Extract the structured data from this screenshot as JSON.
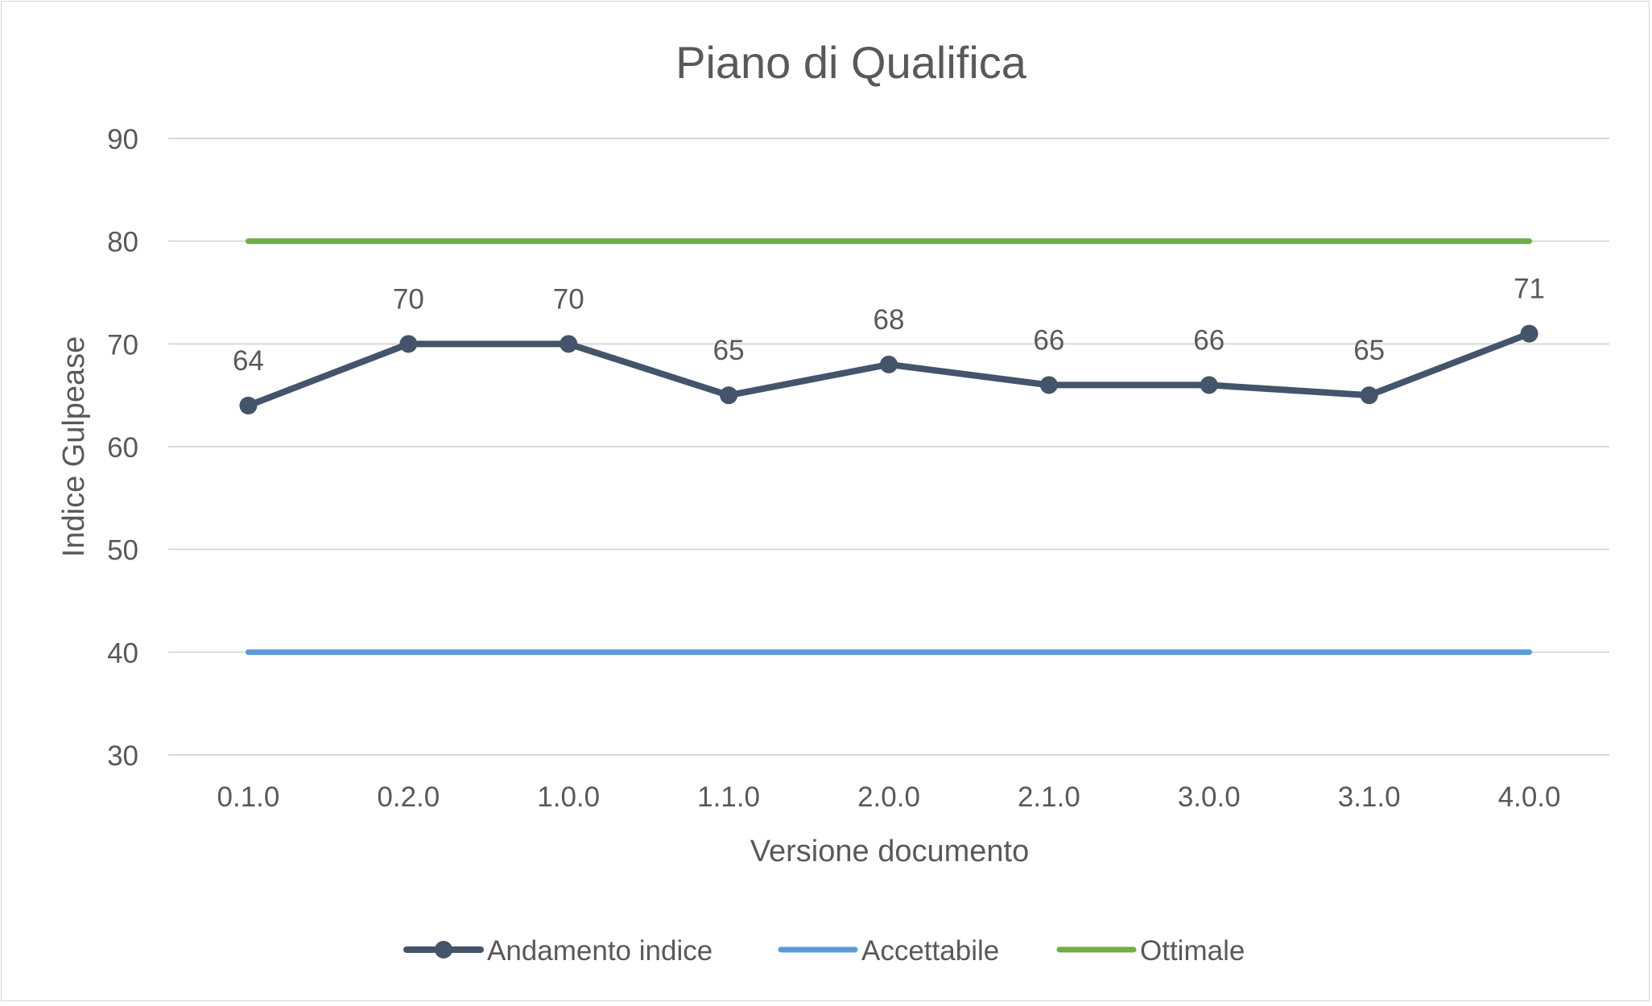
{
  "chart_data": {
    "type": "line",
    "title": "Piano di Qualifica",
    "xlabel": "Versione documento",
    "ylabel": "Indice Gulpease",
    "categories": [
      "0.1.0",
      "0.2.0",
      "1.0.0",
      "1.1.0",
      "2.0.0",
      "2.1.0",
      "3.0.0",
      "3.1.0",
      "4.0.0"
    ],
    "ylim": [
      30,
      90
    ],
    "yticks": [
      30,
      40,
      50,
      60,
      70,
      80,
      90
    ],
    "grid": true,
    "legend_position": "bottom",
    "series": [
      {
        "name": "Andamento indice",
        "values": [
          64,
          70,
          70,
          65,
          68,
          66,
          66,
          65,
          71
        ],
        "color": "#44546a",
        "markers": true,
        "data_labels": true
      },
      {
        "name": "Accettabile",
        "values": [
          40,
          40,
          40,
          40,
          40,
          40,
          40,
          40,
          40
        ],
        "color": "#5b9bd5",
        "markers": false,
        "data_labels": false
      },
      {
        "name": "Ottimale",
        "values": [
          80,
          80,
          80,
          80,
          80,
          80,
          80,
          80,
          80
        ],
        "color": "#70ad47",
        "markers": false,
        "data_labels": false
      }
    ]
  }
}
